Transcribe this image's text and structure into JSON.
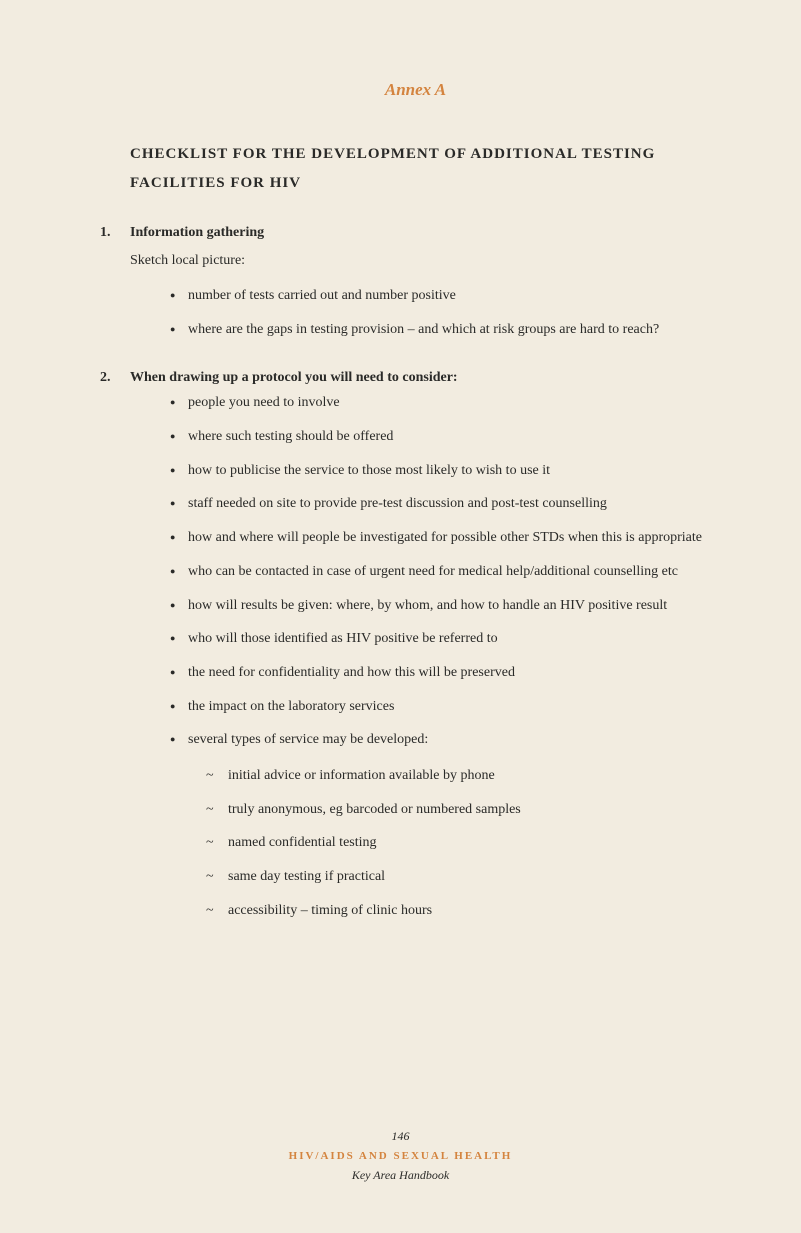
{
  "colors": {
    "background": "#f2ece0",
    "text": "#2a2a28",
    "accent": "#d4843f"
  },
  "typography": {
    "body_fontsize": 14,
    "heading_fontsize": 15,
    "annex_fontsize": 17,
    "footer_fontsize": 12,
    "footer_org_fontsize": 11
  },
  "annex": "Annex A",
  "heading": "CHECKLIST FOR THE DEVELOPMENT OF ADDITIONAL TESTING FACILITIES FOR HIV",
  "sections": [
    {
      "num": "1.",
      "title": "Information gathering",
      "intro": "Sketch local picture:",
      "bullets": [
        "number of tests carried out and number positive",
        "where are the gaps in testing provision – and which at risk groups are hard to reach?"
      ]
    },
    {
      "num": "2.",
      "title": "When drawing up a protocol you will need to consider:",
      "bullets": [
        "people you need to involve",
        "where such testing should be offered",
        "how to publicise the service to those most likely to wish to use it",
        "staff needed on site to provide pre-test discussion and post-test counselling",
        "how and where will people be investigated for possible other STDs when this is appropriate",
        "who can be contacted in case of urgent need for medical help/additional counselling etc",
        "how will results be given: where, by whom, and how to handle an HIV positive result",
        "who will those identified as HIV positive be referred to",
        "the need for confidentiality and how this will be preserved",
        "the impact on the laboratory services",
        "several types of service may be developed:"
      ],
      "sub_bullets": [
        "initial advice or information available by phone",
        "truly anonymous, eg barcoded or numbered samples",
        "named confidential testing",
        "same day testing if practical",
        "accessibility – timing of clinic hours"
      ]
    }
  ],
  "footer": {
    "page": "146",
    "org": "HIV/AIDS AND SEXUAL HEALTH",
    "sub": "Key Area Handbook"
  }
}
